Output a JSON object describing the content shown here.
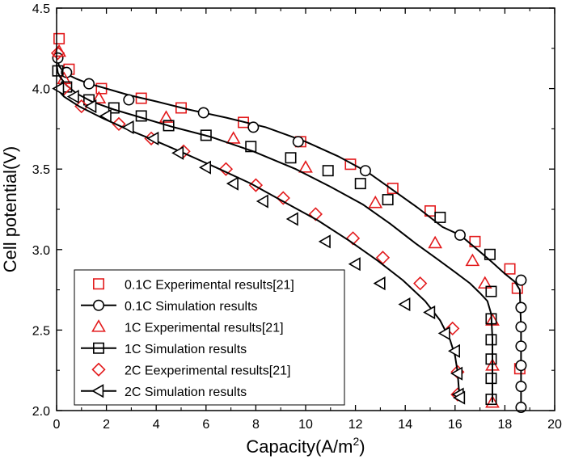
{
  "chart_data": {
    "type": "scatter",
    "xlabel": "Capacity(A/m",
    "xlabel_sup": "2",
    "xlabel_close": ")",
    "ylabel": "Cell potential(V)",
    "xlim": [
      0,
      20
    ],
    "ylim": [
      2.0,
      4.5
    ],
    "xticks": [
      0,
      2,
      4,
      6,
      8,
      10,
      12,
      14,
      16,
      18,
      20
    ],
    "yticks": [
      2.0,
      2.5,
      3.0,
      3.5,
      4.0,
      4.5
    ],
    "legend_position": "bottom-left",
    "series": [
      {
        "name": "0.1C Experimental results[21]",
        "kind": "markers",
        "marker": "square",
        "color": "#e31a1c",
        "x": [
          0.1,
          0.5,
          1.8,
          3.4,
          5.0,
          7.5,
          9.8,
          11.8,
          13.5,
          15.0,
          16.8,
          18.2,
          18.5,
          18.6
        ],
        "y": [
          4.31,
          4.12,
          4.0,
          3.94,
          3.88,
          3.79,
          3.67,
          3.53,
          3.38,
          3.24,
          3.05,
          2.88,
          2.76,
          2.26
        ]
      },
      {
        "name": "0.1C Simulation results",
        "kind": "line+markers",
        "marker": "circle",
        "color": "#000000",
        "x": [
          0.0,
          0.05,
          0.1,
          0.2,
          0.4,
          0.8,
          1.3,
          2.0,
          2.9,
          4.0,
          5.3,
          6.8,
          8.4,
          10.0,
          11.3,
          12.5,
          13.5,
          14.5,
          15.5,
          16.2,
          16.9,
          17.5,
          18.0,
          18.4,
          18.6,
          18.62,
          18.65,
          18.65,
          18.65,
          18.65,
          18.65
        ],
        "y": [
          4.22,
          4.17,
          4.14,
          4.12,
          4.09,
          4.06,
          4.03,
          4.0,
          3.96,
          3.92,
          3.87,
          3.82,
          3.76,
          3.67,
          3.58,
          3.48,
          3.37,
          3.26,
          3.14,
          3.09,
          3.0,
          2.92,
          2.85,
          2.8,
          2.75,
          2.64,
          2.52,
          2.4,
          2.28,
          2.15,
          2.02
        ],
        "marker_x": [
          0.05,
          0.4,
          1.3,
          2.9,
          5.9,
          7.9,
          9.7,
          12.4,
          16.2,
          18.65,
          18.65,
          18.65,
          18.65,
          18.65,
          18.65,
          18.65
        ],
        "marker_y": [
          4.19,
          4.1,
          4.03,
          3.93,
          3.85,
          3.76,
          3.67,
          3.49,
          3.09,
          2.81,
          2.64,
          2.52,
          2.4,
          2.28,
          2.15,
          2.02
        ]
      },
      {
        "name": "1C Experimental results[21]",
        "kind": "markers",
        "marker": "triangle-up",
        "color": "#e31a1c",
        "x": [
          0.1,
          0.3,
          1.7,
          4.4,
          7.1,
          10.0,
          12.8,
          15.2,
          16.7,
          17.2,
          17.5,
          17.5,
          17.5
        ],
        "y": [
          4.23,
          4.06,
          3.94,
          3.82,
          3.69,
          3.51,
          3.29,
          3.04,
          2.93,
          2.79,
          2.56,
          2.28,
          2.05
        ]
      },
      {
        "name": "1C Simulation results",
        "kind": "line+markers",
        "marker": "square",
        "color": "#000000",
        "x": [
          0.0,
          0.05,
          0.15,
          0.4,
          0.8,
          1.4,
          2.3,
          3.4,
          4.7,
          6.2,
          7.9,
          9.6,
          11.0,
          12.3,
          13.4,
          14.4,
          15.3,
          16.0,
          16.6,
          17.0,
          17.3,
          17.45,
          17.5,
          17.5,
          17.5,
          17.5
        ],
        "y": [
          4.15,
          4.1,
          4.07,
          4.02,
          3.97,
          3.92,
          3.87,
          3.82,
          3.76,
          3.7,
          3.61,
          3.5,
          3.39,
          3.28,
          3.16,
          3.04,
          2.94,
          2.86,
          2.79,
          2.73,
          2.68,
          2.6,
          2.45,
          2.3,
          2.15,
          2.05
        ],
        "marker_x": [
          0.05,
          0.4,
          1.3,
          2.3,
          3.4,
          4.5,
          6.0,
          7.8,
          9.4,
          10.9,
          12.2,
          13.3,
          15.4,
          17.4,
          17.45,
          17.45,
          17.45,
          17.45,
          17.45,
          17.45
        ],
        "marker_y": [
          4.11,
          4.01,
          3.93,
          3.88,
          3.83,
          3.77,
          3.71,
          3.64,
          3.57,
          3.49,
          3.41,
          3.31,
          3.2,
          2.97,
          2.74,
          2.57,
          2.44,
          2.32,
          2.2,
          2.07
        ]
      },
      {
        "name": "2C Eexperimental results[21]",
        "kind": "markers",
        "marker": "diamond",
        "color": "#e31a1c",
        "x": [
          0.05,
          0.3,
          1.0,
          2.5,
          3.8,
          5.1,
          6.8,
          8.0,
          9.1,
          10.4,
          11.9,
          13.1,
          14.6,
          15.9,
          16.1,
          16.1
        ],
        "y": [
          4.22,
          4.0,
          3.89,
          3.78,
          3.69,
          3.61,
          3.5,
          3.4,
          3.32,
          3.22,
          3.07,
          2.95,
          2.79,
          2.51,
          2.24,
          2.1
        ]
      },
      {
        "name": "2C Simulation results",
        "kind": "line+markers",
        "marker": "triangle-left",
        "color": "#000000",
        "x": [
          0.0,
          0.3,
          0.9,
          1.8,
          2.8,
          3.9,
          5.1,
          6.4,
          7.8,
          9.2,
          10.5,
          11.8,
          12.9,
          13.9,
          14.8,
          15.4,
          15.8,
          16.0,
          16.1,
          16.15,
          16.2
        ],
        "y": [
          4.0,
          3.95,
          3.89,
          3.82,
          3.75,
          3.68,
          3.6,
          3.51,
          3.41,
          3.29,
          3.18,
          3.05,
          2.93,
          2.81,
          2.68,
          2.56,
          2.44,
          2.34,
          2.24,
          2.14,
          2.08
        ],
        "marker_x": [
          0.1,
          0.7,
          1.4,
          2.0,
          2.9,
          3.9,
          4.9,
          6.0,
          7.1,
          8.3,
          9.5,
          10.8,
          12.0,
          13.0,
          14.0,
          15.0,
          15.6,
          16.0,
          16.1,
          16.15,
          16.2
        ],
        "marker_y": [
          4.0,
          3.95,
          3.89,
          3.83,
          3.76,
          3.69,
          3.6,
          3.51,
          3.41,
          3.3,
          3.19,
          3.05,
          2.91,
          2.79,
          2.66,
          2.61,
          2.48,
          2.37,
          2.23,
          2.1,
          2.08
        ]
      }
    ]
  }
}
